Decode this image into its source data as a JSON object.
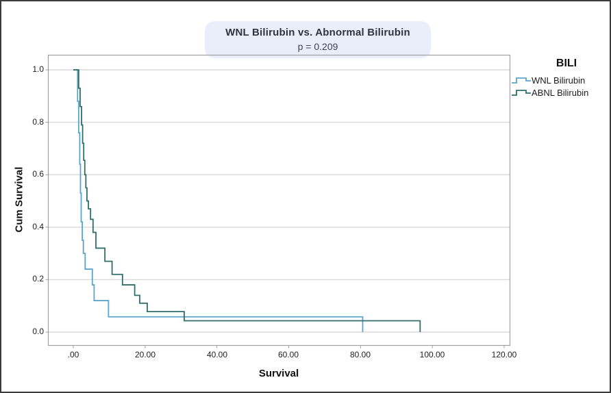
{
  "title": {
    "line1": "WNL Bilirubin vs. Abnormal Bilirubin",
    "line2": "p = 0.209"
  },
  "legend": {
    "title": "BILI",
    "items": [
      {
        "label": "WNL Bilirubin",
        "color": "#5ba4cd"
      },
      {
        "label": "ABNL Bilirubin",
        "color": "#2f6e6a"
      }
    ]
  },
  "axes": {
    "x": {
      "label": "Survival",
      "ticks": [
        ".00",
        "20.00",
        "40.00",
        "60.00",
        "80.00",
        "100.00",
        "120.00"
      ]
    },
    "y": {
      "label": "Cum Survival",
      "ticks": [
        "1.0",
        "0.8",
        "0.6",
        "0.4",
        "0.2",
        "0.0"
      ]
    }
  },
  "colors": {
    "wnl_line": "#5ba4cd",
    "abnl_line": "#2f6e6a",
    "gridline": "#d9d9d9",
    "frame": "#9e9e9e",
    "title_pill_bg": "#e9eefa",
    "outer_border": "#3b3b3b"
  },
  "chart_data": {
    "type": "line",
    "subtype": "kaplan-meier-step",
    "title": "WNL Bilirubin vs. Abnormal Bilirubin",
    "annotation": "p = 0.209",
    "xlabel": "Survival",
    "ylabel": "Cum Survival",
    "xlim": [
      0,
      120
    ],
    "ylim": [
      0,
      1
    ],
    "x_ticks": [
      0,
      20,
      40,
      60,
      80,
      100,
      120
    ],
    "y_ticks": [
      1.0,
      0.8,
      0.6,
      0.4,
      0.2,
      0.0
    ],
    "grid": "horizontal",
    "legend_position": "right",
    "legend_title": "BILI",
    "series": [
      {
        "name": "WNL Bilirubin",
        "color": "#5ba4cd",
        "points": [
          [
            0,
            1.0
          ],
          [
            1.2,
            0.88
          ],
          [
            1.5,
            0.76
          ],
          [
            1.8,
            0.64
          ],
          [
            2.0,
            0.53
          ],
          [
            2.2,
            0.42
          ],
          [
            2.5,
            0.35
          ],
          [
            2.8,
            0.3
          ],
          [
            3.3,
            0.24
          ],
          [
            5.3,
            0.18
          ],
          [
            5.8,
            0.12
          ],
          [
            9.8,
            0.058
          ],
          [
            80.6,
            0.0
          ]
        ]
      },
      {
        "name": "ABNL Bilirubin",
        "color": "#2f6e6a",
        "points": [
          [
            0,
            1.0
          ],
          [
            1.5,
            0.93
          ],
          [
            1.9,
            0.86
          ],
          [
            2.3,
            0.79
          ],
          [
            2.6,
            0.72
          ],
          [
            2.9,
            0.655
          ],
          [
            3.2,
            0.6
          ],
          [
            3.5,
            0.55
          ],
          [
            3.8,
            0.5
          ],
          [
            4.2,
            0.47
          ],
          [
            4.8,
            0.43
          ],
          [
            5.5,
            0.38
          ],
          [
            6.3,
            0.32
          ],
          [
            8.8,
            0.27
          ],
          [
            10.8,
            0.22
          ],
          [
            13.7,
            0.18
          ],
          [
            17.1,
            0.14
          ],
          [
            18.5,
            0.11
          ],
          [
            20.6,
            0.078
          ],
          [
            30.9,
            0.043
          ],
          [
            96.6,
            0.0
          ]
        ]
      }
    ]
  }
}
